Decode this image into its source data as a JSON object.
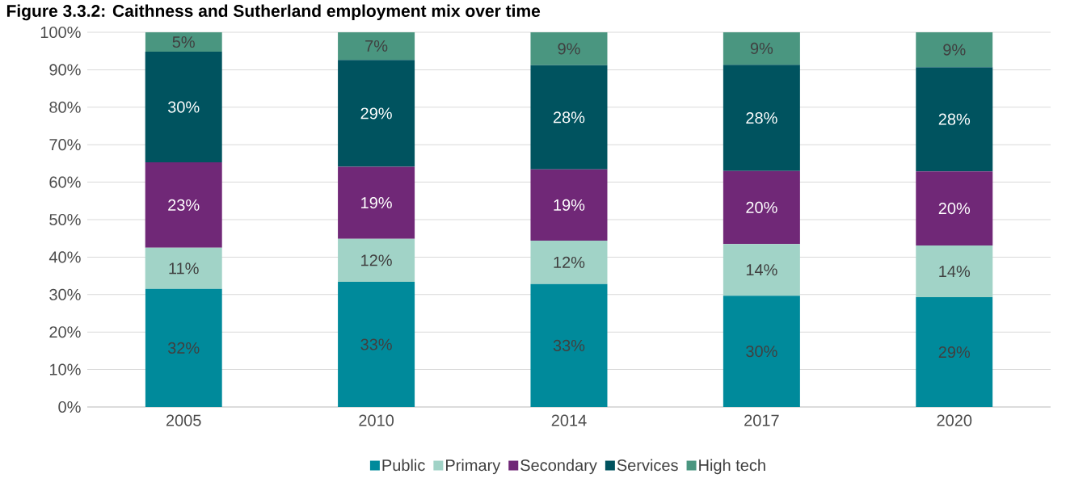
{
  "chart_data": {
    "type": "bar",
    "stacked": true,
    "title": "Figure 3.3.2: Caithness and Sutherland employment mix over time",
    "categories": [
      "2005",
      "2010",
      "2014",
      "2017",
      "2020"
    ],
    "series": [
      {
        "name": "Public",
        "color": "#008a9b",
        "values": [
          31.5,
          33.4,
          32.8,
          29.7,
          29.3
        ],
        "value_labels": [
          "32%",
          "33%",
          "33%",
          "30%",
          "29%"
        ]
      },
      {
        "name": "Primary",
        "color": "#a1d3c7",
        "values": [
          11.0,
          11.5,
          11.6,
          13.8,
          13.8
        ],
        "value_labels": [
          "11%",
          "12%",
          "12%",
          "14%",
          "14%"
        ]
      },
      {
        "name": "Secondary",
        "color": "#702877",
        "values": [
          22.8,
          19.2,
          19.0,
          19.5,
          19.8
        ],
        "value_labels": [
          "23%",
          "19%",
          "19%",
          "20%",
          "20%"
        ]
      },
      {
        "name": "Services",
        "color": "#00535f",
        "values": [
          29.5,
          28.5,
          27.8,
          28.3,
          27.8
        ],
        "value_labels": [
          "30%",
          "29%",
          "28%",
          "28%",
          "28%"
        ]
      },
      {
        "name": "High tech",
        "color": "#4a9680",
        "values": [
          5.2,
          7.5,
          8.8,
          8.8,
          9.3
        ],
        "value_labels": [
          "5%",
          "7%",
          "9%",
          "9%",
          "9%"
        ]
      }
    ],
    "ylim": [
      0,
      100
    ],
    "yticks": [
      {
        "value": 0,
        "label": "0%"
      },
      {
        "value": 10,
        "label": "10%"
      },
      {
        "value": 20,
        "label": "20%"
      },
      {
        "value": 30,
        "label": "30%"
      },
      {
        "value": 40,
        "label": "40%"
      },
      {
        "value": 50,
        "label": "50%"
      },
      {
        "value": 60,
        "label": "60%"
      },
      {
        "value": 70,
        "label": "70%"
      },
      {
        "value": 80,
        "label": "80%"
      },
      {
        "value": 90,
        "label": "90%"
      },
      {
        "value": 100,
        "label": "100%"
      }
    ],
    "grid": "y",
    "legend": "bottom"
  }
}
